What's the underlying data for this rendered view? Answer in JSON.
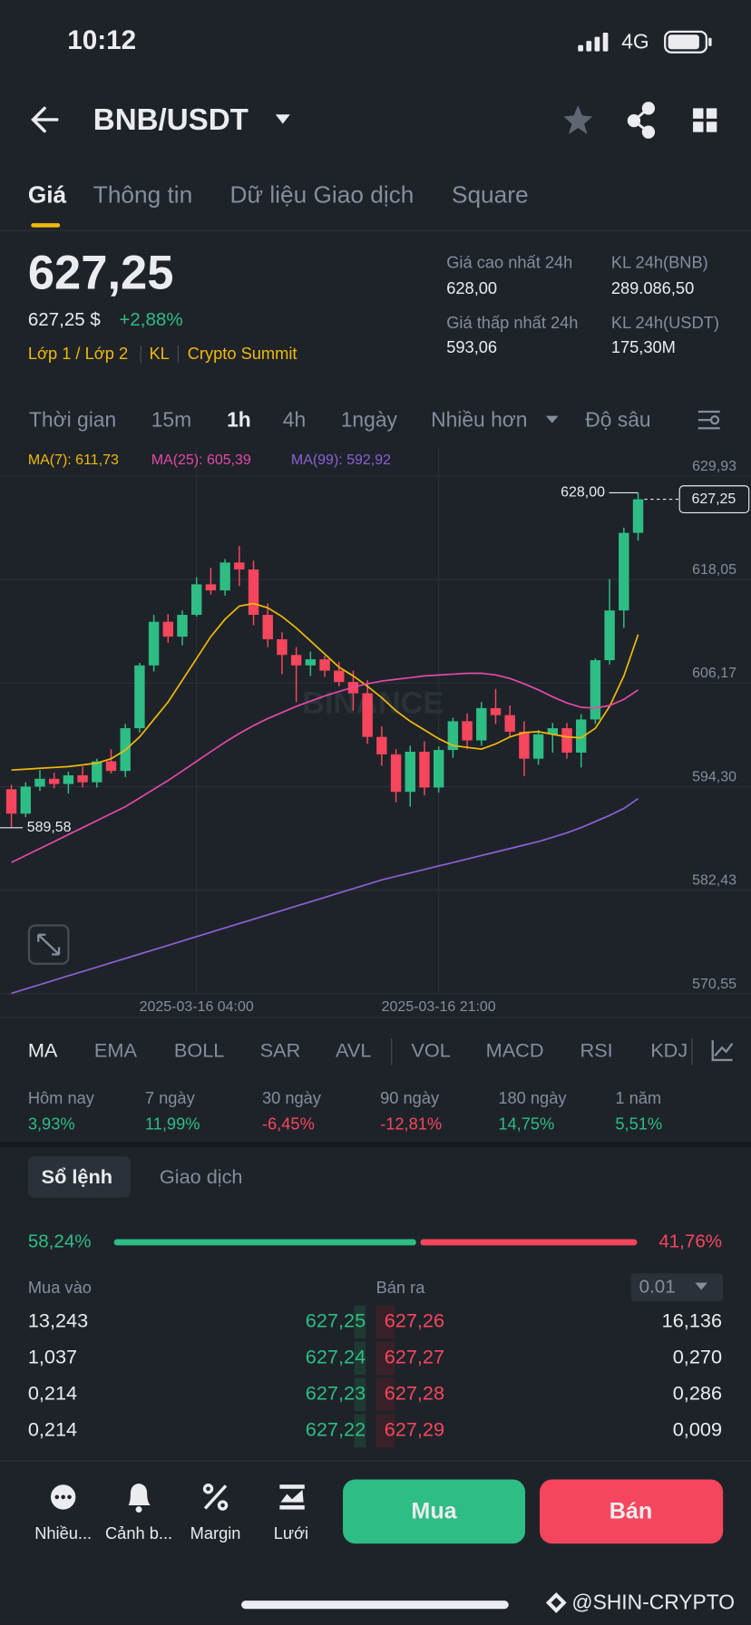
{
  "status_bar": {
    "time": "10:12",
    "network": "4G"
  },
  "header": {
    "pair": "BNB/USDT"
  },
  "tabs": [
    "Giá",
    "Thông tin",
    "Dữ liệu Giao dịch",
    "Square"
  ],
  "price": {
    "last": "627,25",
    "fiat": "627,25 $",
    "change": "+2,88%",
    "tags": [
      "Lớp 1 / Lớp 2",
      "KL",
      "Crypto Summit"
    ]
  },
  "stats": [
    {
      "label": "Giá cao nhất 24h",
      "value": "628,00"
    },
    {
      "label": "KL 24h(BNB)",
      "value": "289.086,50"
    },
    {
      "label": "Giá thấp nhất 24h",
      "value": "593,06"
    },
    {
      "label": "KL 24h(USDT)",
      "value": "175,30M"
    }
  ],
  "intervals": [
    "Thời gian",
    "15m",
    "1h",
    "4h",
    "1ngày",
    "Nhiều hơn",
    "Độ sâu"
  ],
  "chart_data": {
    "type": "candlestick",
    "categories": [
      null,
      null,
      null,
      null,
      null,
      null,
      null,
      null,
      null,
      null,
      null,
      null,
      null,
      "2025-03-16 04:00",
      null,
      null,
      null,
      null,
      null,
      null,
      null,
      null,
      null,
      null,
      null,
      null,
      null,
      null,
      null,
      null,
      "2025-03-16 21:00",
      null,
      null,
      null,
      null,
      null,
      null,
      null,
      null,
      null,
      null,
      null,
      null,
      null,
      null
    ],
    "open": [
      594.0,
      591.2,
      594.3,
      595.2,
      594.6,
      595.6,
      594.8,
      597.2,
      596.1,
      601.0,
      608.2,
      613.2,
      611.5,
      614.0,
      617.5,
      616.8,
      620.0,
      619.2,
      614.0,
      611.2,
      609.4,
      608.2,
      608.9,
      607.6,
      606.3,
      605.0,
      600.0,
      598.0,
      593.7,
      598.3,
      594.2,
      598.5,
      601.8,
      599.6,
      603.3,
      602.5,
      600.6,
      597.5,
      600.3,
      601.0,
      598.2,
      602.0,
      608.8,
      614.5,
      623.4
    ],
    "high": [
      594.5,
      594.8,
      596.2,
      595.9,
      596.0,
      596.6,
      597.5,
      598.6,
      601.5,
      608.5,
      614.0,
      614.1,
      614.5,
      618.3,
      619.4,
      620.4,
      621.9,
      620.2,
      615.3,
      612.0,
      610.3,
      609.8,
      609.3,
      608.6,
      607.6,
      606.5,
      601.2,
      598.6,
      599.0,
      599.5,
      598.9,
      602.2,
      602.7,
      604.0,
      605.5,
      603.6,
      601.8,
      600.8,
      601.6,
      601.6,
      602.6,
      609.0,
      618.1,
      624.0,
      628.0
    ],
    "low": [
      589.58,
      590.8,
      593.8,
      594.1,
      593.5,
      594.2,
      594.2,
      595.8,
      595.4,
      600.5,
      607.5,
      610.8,
      610.5,
      613.8,
      616.3,
      616.2,
      617.3,
      612.8,
      610.3,
      607.2,
      604.0,
      607.0,
      606.9,
      605.8,
      603.0,
      599.2,
      596.7,
      592.5,
      592.0,
      593.3,
      593.6,
      597.6,
      598.6,
      599.0,
      601.5,
      600.0,
      595.5,
      596.8,
      598.2,
      597.5,
      596.5,
      601.5,
      608.3,
      612.5,
      622.5
    ],
    "close": [
      591.2,
      594.3,
      595.2,
      594.6,
      595.6,
      594.8,
      597.2,
      596.1,
      601.0,
      608.2,
      613.2,
      611.5,
      614.0,
      617.5,
      616.8,
      620.0,
      619.2,
      614.0,
      611.2,
      609.4,
      608.2,
      608.9,
      607.6,
      606.3,
      605.0,
      600.0,
      598.0,
      593.7,
      598.3,
      594.2,
      598.5,
      601.8,
      599.6,
      603.3,
      602.5,
      600.6,
      597.5,
      600.3,
      601.0,
      598.2,
      602.0,
      608.8,
      614.5,
      623.4,
      627.25
    ],
    "up_color": "#2ebd85",
    "down_color": "#f6465d",
    "ylim": [
      570.55,
      629.93
    ],
    "yticks": [
      {
        "value": 629.93,
        "label": "629,93"
      },
      {
        "value": 618.05,
        "label": "618,05"
      },
      {
        "value": 606.17,
        "label": "606,17"
      },
      {
        "value": 594.3,
        "label": "594,30"
      },
      {
        "value": 582.43,
        "label": "582,43"
      },
      {
        "value": 570.55,
        "label": "570,55"
      }
    ],
    "grid": true,
    "series": [
      {
        "name": "MA(7): 611,73",
        "color": "#f0b90b",
        "values": [
          596.2,
          596.3,
          596.4,
          596.5,
          596.6,
          596.8,
          597.0,
          597.5,
          598.5,
          600.0,
          602.0,
          604.0,
          606.5,
          609.0,
          611.5,
          613.5,
          615.0,
          615.3,
          614.8,
          613.8,
          612.5,
          611.0,
          609.5,
          608.0,
          607.0,
          605.8,
          604.5,
          603.0,
          601.8,
          600.8,
          599.8,
          599.0,
          598.8,
          598.6,
          599.2,
          600.0,
          600.5,
          600.6,
          600.3,
          600.0,
          599.9,
          601.0,
          603.5,
          607.0,
          611.73
        ]
      },
      {
        "name": "MA(25): 605,39",
        "color": "#e349a8",
        "values": [
          585.6,
          586.4,
          587.2,
          588.0,
          588.8,
          589.6,
          590.4,
          591.2,
          592.0,
          593.0,
          594.0,
          595.0,
          596.1,
          597.2,
          598.3,
          599.4,
          600.4,
          601.3,
          602.1,
          602.8,
          603.5,
          604.1,
          604.7,
          605.2,
          605.7,
          606.1,
          606.4,
          606.6,
          606.8,
          607.0,
          607.1,
          607.2,
          607.3,
          607.3,
          607.1,
          606.7,
          606.1,
          605.4,
          604.6,
          603.9,
          603.4,
          603.3,
          603.6,
          604.3,
          605.39
        ]
      },
      {
        "name": "MA(99): 592,92",
        "color": "#8c61d4",
        "values": [
          570.6,
          571.1,
          571.6,
          572.1,
          572.6,
          573.1,
          573.6,
          574.1,
          574.6,
          575.1,
          575.6,
          576.1,
          576.6,
          577.1,
          577.6,
          578.1,
          578.6,
          579.1,
          579.6,
          580.1,
          580.6,
          581.1,
          581.6,
          582.1,
          582.6,
          583.1,
          583.6,
          584.0,
          584.4,
          584.8,
          585.2,
          585.6,
          586.0,
          586.4,
          586.8,
          587.2,
          587.6,
          588.0,
          588.5,
          589.0,
          589.6,
          590.3,
          591.0,
          591.8,
          592.92
        ]
      }
    ],
    "markers": {
      "high": {
        "value": 628.0,
        "label": "628,00"
      },
      "low": {
        "value": 589.58,
        "label": "589,58"
      },
      "last": {
        "value": 627.25,
        "label": "627,25"
      }
    },
    "watermark": "BINANCE"
  },
  "indicators": [
    "MA",
    "EMA",
    "BOLL",
    "SAR",
    "AVL",
    "VOL",
    "MACD",
    "RSI",
    "KDJ"
  ],
  "performance": [
    {
      "period": "Hôm nay",
      "change": "3,93%"
    },
    {
      "period": "7 ngày",
      "change": "11,99%"
    },
    {
      "period": "30 ngày",
      "change": "-6,45%"
    },
    {
      "period": "90 ngày",
      "change": "-12,81%"
    },
    {
      "period": "180 ngày",
      "change": "14,75%"
    },
    {
      "period": "1 năm",
      "change": "5,51%"
    }
  ],
  "order_book": {
    "tabs": [
      "Sổ lệnh",
      "Giao dịch"
    ],
    "buy_ratio": {
      "value": 58.24,
      "label": "58,24%"
    },
    "sell_ratio": {
      "value": 41.76,
      "label": "41,76%"
    },
    "bid_header": "Mua vào",
    "ask_header": "Bán ra",
    "precision": "0.01",
    "rows": [
      [
        "13,243",
        "627,25",
        "627,26",
        "16,136"
      ],
      [
        "1,037",
        "627,24",
        "627,27",
        "0,270"
      ],
      [
        "0,214",
        "627,23",
        "627,28",
        "0,286"
      ],
      [
        "0,214",
        "627,22",
        "627,29",
        "0,009"
      ]
    ]
  },
  "bottom_bar": {
    "items": [
      "Nhiều...",
      "Cảnh b...",
      "Margin",
      "Lưới"
    ],
    "buy": "Mua",
    "sell": "Bán"
  },
  "credit": "@SHIN-CRYPTO"
}
